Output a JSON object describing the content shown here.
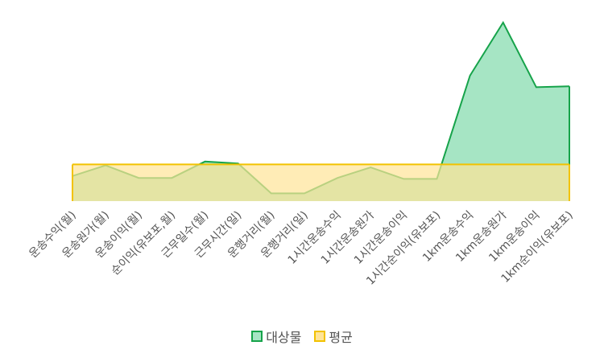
{
  "chart_data": {
    "type": "area",
    "categories": [
      "운송수익(월)",
      "운송원가(월)",
      "운송이익(월)",
      "순이익(유보포,월)",
      "근무일수(월)",
      "근무시간(일)",
      "운행거리(월)",
      "운행거리(일)",
      "1시간운송수익",
      "1시간운송원가",
      "1시간운송이익",
      "1시간순이익(유보포)",
      "1km운송수익",
      "1km운송원가",
      "1km운송이익",
      "1km순이익(유보포)"
    ],
    "series": [
      {
        "name": "대상물",
        "values": [
          26,
          37,
          24,
          24,
          41,
          39,
          8,
          8,
          24,
          35,
          23,
          23,
          130,
          185,
          118,
          119
        ],
        "color": "#16a34a",
        "fill": "#a6e5c4"
      },
      {
        "name": "평균",
        "values": [
          38,
          38,
          38,
          38,
          38,
          38,
          38,
          38,
          38,
          38,
          38,
          38,
          38,
          38,
          38,
          38
        ],
        "color": "#f2c200",
        "fill": "#ffe497"
      }
    ],
    "ylim": [
      0,
      200
    ],
    "grid": false,
    "legend": "bottom"
  }
}
